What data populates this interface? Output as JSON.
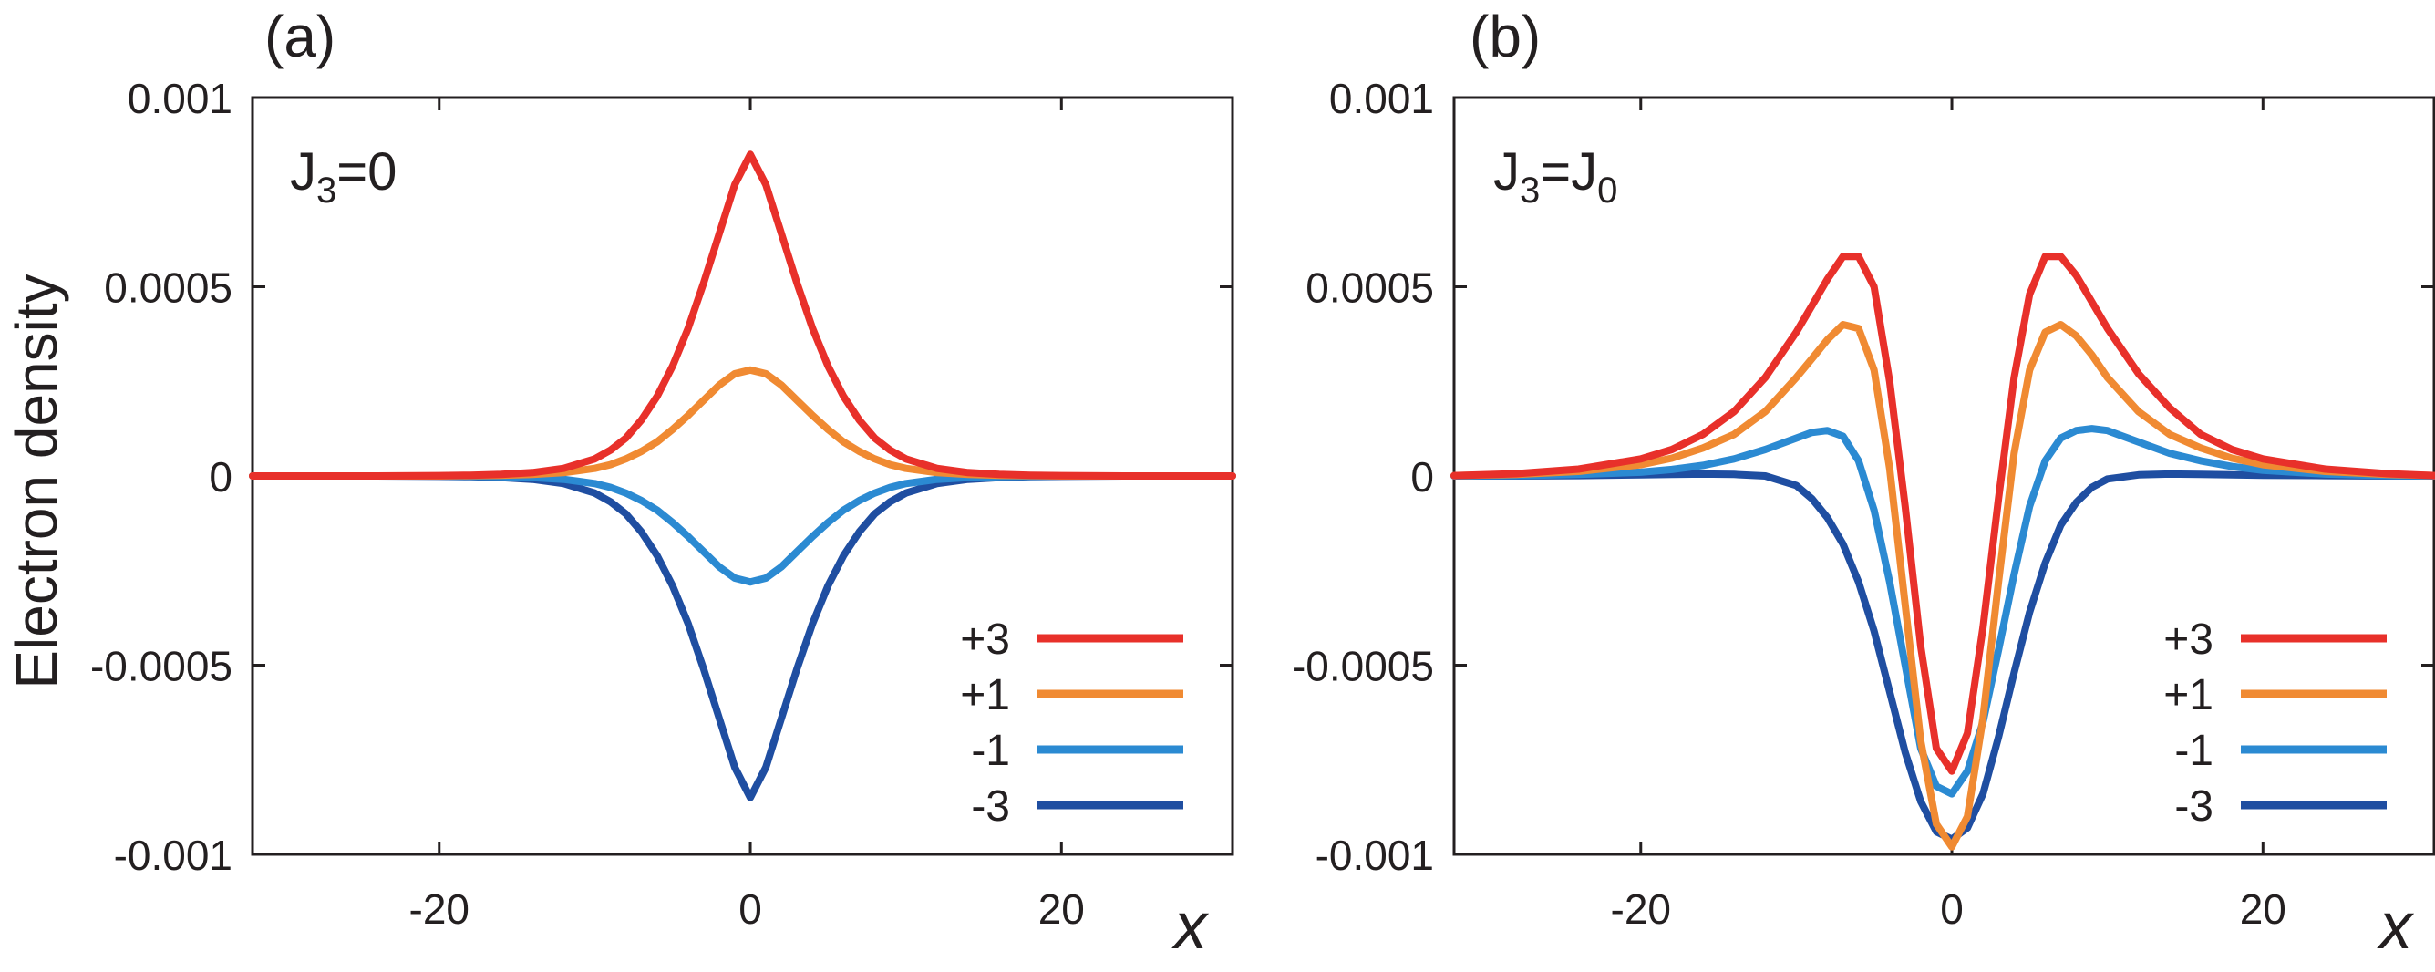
{
  "ylabel": "Electron density",
  "chart_data": [
    {
      "type": "line",
      "panel_label": "(a)",
      "annotation": {
        "main": "J",
        "sub": "3",
        "rest": "=0",
        "sub2": ""
      },
      "xlabel": "x",
      "ylabel": "Electron density",
      "xlim": [
        -32,
        31
      ],
      "ylim": [
        -0.001,
        0.001
      ],
      "xticks": [
        -20,
        0,
        20
      ],
      "xtick_labels": [
        "-20",
        "0",
        "20"
      ],
      "yticks": [
        0.001,
        0.0005,
        0,
        -0.0005,
        -0.001
      ],
      "ytick_labels": [
        "0.001",
        "0.0005",
        "0",
        "-0.0005",
        "-0.001"
      ],
      "legend_position": "bottom-right",
      "x": [
        -32,
        -28,
        -24,
        -20,
        -18,
        -16,
        -14,
        -12,
        -10,
        -9,
        -8,
        -7,
        -6,
        -5,
        -4,
        -3,
        -2,
        -1,
        0,
        1,
        2,
        3,
        4,
        5,
        6,
        7,
        8,
        9,
        10,
        12,
        14,
        16,
        18,
        20,
        24,
        28,
        31
      ],
      "series": [
        {
          "name": "+3",
          "color": "#e8302a",
          "values": [
            0,
            0,
            0,
            1e-06,
            2e-06,
            4e-06,
            9e-06,
            2e-05,
            4.5e-05,
            6.8e-05,
            0.0001,
            0.000148,
            0.00021,
            0.00029,
            0.00039,
            0.00051,
            0.00064,
            0.00077,
            0.00085,
            0.00077,
            0.00064,
            0.00051,
            0.00039,
            0.00029,
            0.00021,
            0.000148,
            0.0001,
            6.8e-05,
            4.5e-05,
            2e-05,
            9e-06,
            4e-06,
            2e-06,
            1e-06,
            0,
            0,
            0
          ]
        },
        {
          "name": "+1",
          "color": "#f08a32",
          "values": [
            0,
            0,
            0,
            0,
            1e-06,
            2e-06,
            4e-06,
            9e-06,
            2e-05,
            3e-05,
            4.5e-05,
            6.5e-05,
            9e-05,
            0.000123,
            0.00016,
            0.0002,
            0.00024,
            0.00027,
            0.00028,
            0.00027,
            0.00024,
            0.0002,
            0.00016,
            0.000123,
            9e-05,
            6.5e-05,
            4.5e-05,
            3e-05,
            2e-05,
            9e-06,
            4e-06,
            2e-06,
            1e-06,
            0,
            0,
            0,
            0
          ]
        },
        {
          "name": "-1",
          "color": "#2b8ad2",
          "values": [
            0,
            0,
            0,
            0,
            -1e-06,
            -2e-06,
            -4e-06,
            -9e-06,
            -2e-05,
            -3e-05,
            -4.5e-05,
            -6.5e-05,
            -9e-05,
            -0.000123,
            -0.00016,
            -0.0002,
            -0.00024,
            -0.00027,
            -0.00028,
            -0.00027,
            -0.00024,
            -0.0002,
            -0.00016,
            -0.000123,
            -9e-05,
            -6.5e-05,
            -4.5e-05,
            -3e-05,
            -2e-05,
            -9e-06,
            -4e-06,
            -2e-06,
            -1e-06,
            0,
            0,
            0,
            0
          ]
        },
        {
          "name": "-3",
          "color": "#1f4ea1",
          "values": [
            0,
            0,
            0,
            -1e-06,
            -2e-06,
            -4e-06,
            -9e-06,
            -2e-05,
            -4.5e-05,
            -6.8e-05,
            -0.0001,
            -0.000148,
            -0.00021,
            -0.00029,
            -0.00039,
            -0.00051,
            -0.00064,
            -0.00077,
            -0.00085,
            -0.00077,
            -0.00064,
            -0.00051,
            -0.00039,
            -0.00029,
            -0.00021,
            -0.000148,
            -0.0001,
            -6.8e-05,
            -4.5e-05,
            -2e-05,
            -9e-06,
            -4e-06,
            -2e-06,
            -1e-06,
            0,
            0,
            0
          ]
        }
      ]
    },
    {
      "type": "line",
      "panel_label": "(b)",
      "annotation": {
        "main": "J",
        "sub": "3",
        "rest": "=J",
        "sub2": "0"
      },
      "xlabel": "x",
      "ylabel": "Electron density",
      "xlim": [
        -32,
        31
      ],
      "ylim": [
        -0.001,
        0.001
      ],
      "xticks": [
        -20,
        0,
        20
      ],
      "xtick_labels": [
        "-20",
        "0",
        "20"
      ],
      "yticks": [
        0.001,
        0.0005,
        0,
        -0.0005,
        -0.001
      ],
      "ytick_labels": [
        "0.001",
        "0.0005",
        "0",
        "-0.0005",
        "-0.001"
      ],
      "legend_position": "bottom-right",
      "x": [
        -32,
        -28,
        -24,
        -20,
        -18,
        -16,
        -14,
        -12,
        -10,
        -9,
        -8,
        -7,
        -6,
        -5,
        -4,
        -3,
        -2,
        -1,
        0,
        1,
        2,
        3,
        4,
        5,
        6,
        7,
        8,
        9,
        10,
        12,
        14,
        16,
        18,
        20,
        24,
        28,
        31
      ],
      "series": [
        {
          "name": "+3",
          "color": "#e8302a",
          "values": [
            1e-06,
            6e-06,
            1.8e-05,
            4.5e-05,
            7e-05,
            0.00011,
            0.00017,
            0.00026,
            0.00038,
            0.00045,
            0.00052,
            0.00058,
            0.00058,
            0.0005,
            0.00025,
            -8e-05,
            -0.00045,
            -0.00072,
            -0.00078,
            -0.00068,
            -0.0004,
            -6e-05,
            0.00026,
            0.00048,
            0.00058,
            0.00058,
            0.00053,
            0.00046,
            0.00039,
            0.00027,
            0.00018,
            0.00011,
            7e-05,
            4.5e-05,
            1.8e-05,
            6e-06,
            1e-06
          ]
        },
        {
          "name": "+1",
          "color": "#f08a32",
          "values": [
            1e-06,
            4e-06,
            1.2e-05,
            3e-05,
            4.7e-05,
            7.4e-05,
            0.00011,
            0.00017,
            0.00026,
            0.00031,
            0.00036,
            0.0004,
            0.00039,
            0.00028,
            2e-05,
            -0.00034,
            -0.0007,
            -0.00092,
            -0.00098,
            -0.0009,
            -0.00064,
            -0.00028,
            6e-05,
            0.00028,
            0.00038,
            0.0004,
            0.00037,
            0.00032,
            0.00026,
            0.00017,
            0.00011,
            7.4e-05,
            4.7e-05,
            3e-05,
            1.2e-05,
            4e-06,
            1e-06
          ]
        },
        {
          "name": "-1",
          "color": "#2b8ad2",
          "values": [
            0,
            1e-06,
            4e-06,
            1e-05,
            1.7e-05,
            2.8e-05,
            4.5e-05,
            7e-05,
            0.0001,
            0.000115,
            0.00012,
            0.000105,
            4e-05,
            -9e-05,
            -0.00028,
            -0.0005,
            -0.00072,
            -0.00082,
            -0.00084,
            -0.00078,
            -0.00065,
            -0.00046,
            -0.00026,
            -8e-05,
            4e-05,
            0.0001,
            0.00012,
            0.000125,
            0.00012,
            9e-05,
            6e-05,
            4e-05,
            2.5e-05,
            1.5e-05,
            5e-06,
            1e-06,
            0
          ]
        },
        {
          "name": "-3",
          "color": "#1f4ea1",
          "values": [
            0,
            0,
            1e-06,
            3e-06,
            4e-06,
            5e-06,
            4e-06,
            0,
            -2.5e-05,
            -6e-05,
            -0.00011,
            -0.00018,
            -0.00028,
            -0.00041,
            -0.00057,
            -0.00073,
            -0.00086,
            -0.00094,
            -0.00096,
            -0.00093,
            -0.00084,
            -0.00069,
            -0.00052,
            -0.00036,
            -0.00023,
            -0.00013,
            -7e-05,
            -3e-05,
            -8e-06,
            3e-06,
            5e-06,
            4e-06,
            3e-06,
            2e-06,
            1e-06,
            0,
            0
          ]
        }
      ]
    }
  ]
}
